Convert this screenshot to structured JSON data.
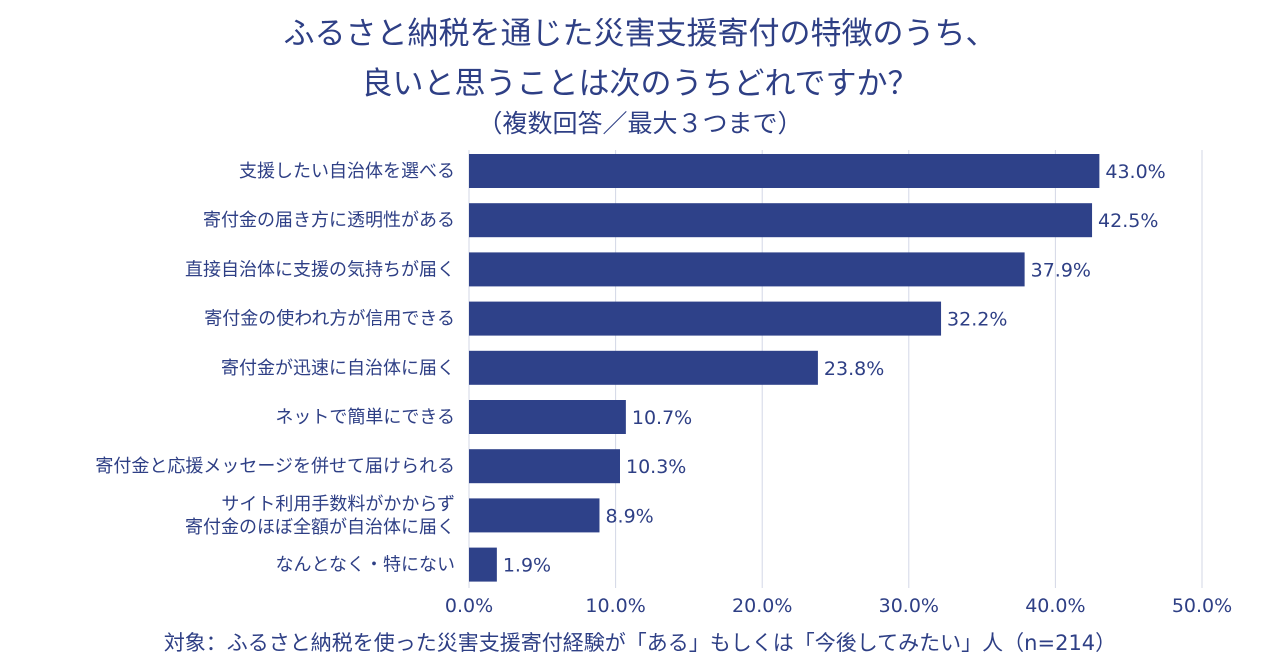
{
  "chart_data": {
    "type": "bar",
    "orientation": "horizontal",
    "title_lines": [
      "ふるさと納税を通じた災害支援寄付の特徴のうち、",
      "良いと思うことは次のうちどれですか？"
    ],
    "subtitle": "（複数回答／最大３つまで）",
    "categories": [
      [
        "支援したい自治体を選べる"
      ],
      [
        "寄付金の届き方に透明性がある"
      ],
      [
        "直接自治体に支援の気持ちが届く"
      ],
      [
        "寄付金の使われ方が信用できる"
      ],
      [
        "寄付金が迅速に自治体に届く"
      ],
      [
        "ネットで簡単にできる"
      ],
      [
        "寄付金と応援メッセージを併せて届けられる"
      ],
      [
        "サイト利用手数料がかからず",
        "寄付金のほぼ全額が自治体に届く"
      ],
      [
        "なんとなく・特にない"
      ]
    ],
    "values": [
      43.0,
      42.5,
      37.9,
      32.2,
      23.8,
      10.7,
      10.3,
      8.9,
      1.9
    ],
    "value_labels": [
      "43.0%",
      "42.5%",
      "37.9%",
      "32.2%",
      "23.8%",
      "10.7%",
      "10.3%",
      "8.9%",
      "1.9%"
    ],
    "x_ticks": [
      0,
      10,
      20,
      30,
      40,
      50
    ],
    "x_tick_labels": [
      "0.0%",
      "10.0%",
      "20.0%",
      "30.0%",
      "40.0%",
      "50.0%"
    ],
    "xlim": [
      0,
      50
    ],
    "xlabel": "",
    "ylabel": "",
    "grid": true,
    "bar_color": "#2e4189",
    "grid_color": "#d3d7e6",
    "text_color": "#2e3f85"
  },
  "footnote": "対象：ふるさと納税を使った災害支援寄付経験が「ある」もしくは「今後してみたい」人（n=214）"
}
